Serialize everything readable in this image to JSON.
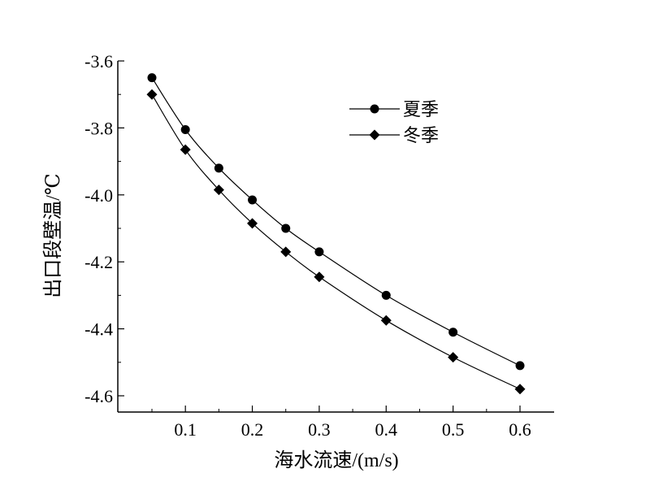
{
  "chart_data": {
    "type": "line",
    "xlabel": "海水流速/(m/s)",
    "ylabel": "出口段壁温/℃",
    "xlim": [
      0.0,
      0.65
    ],
    "ylim": [
      -4.65,
      -3.6
    ],
    "xticks": [
      0.1,
      0.2,
      0.3,
      0.4,
      0.5,
      0.6
    ],
    "xtick_labels": [
      "0.1",
      "0.2",
      "0.3",
      "0.4",
      "0.5",
      "0.6"
    ],
    "yticks": [
      -3.6,
      -3.8,
      -4.0,
      -4.2,
      -4.4,
      -4.6
    ],
    "ytick_labels": [
      "-3.6",
      "-3.8",
      "-4.0",
      "-4.2",
      "-4.4",
      "-4.6"
    ],
    "grid": false,
    "legend_position": "top-right",
    "x": [
      0.05,
      0.1,
      0.15,
      0.2,
      0.25,
      0.3,
      0.4,
      0.5,
      0.6
    ],
    "series": [
      {
        "name": "夏季",
        "marker": "circle",
        "color": "#000000",
        "values": [
          -3.65,
          -3.805,
          -3.92,
          -4.015,
          -4.1,
          -4.17,
          -4.3,
          -4.41,
          -4.51
        ]
      },
      {
        "name": "冬季",
        "marker": "diamond",
        "color": "#000000",
        "values": [
          -3.7,
          -3.865,
          -3.985,
          -4.085,
          -4.17,
          -4.245,
          -4.375,
          -4.485,
          -4.58
        ]
      }
    ]
  }
}
